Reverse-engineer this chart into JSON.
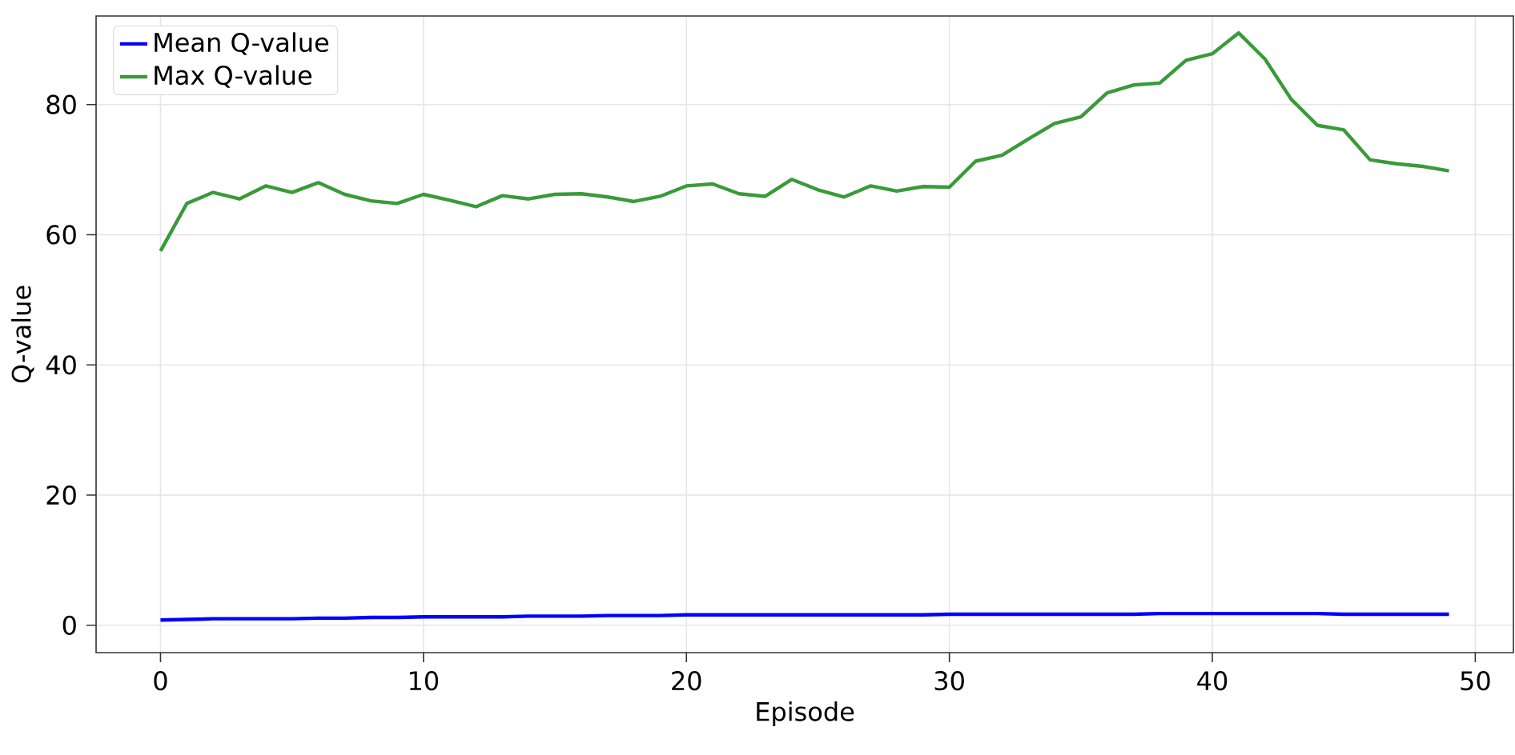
{
  "chart_data": {
    "type": "line",
    "xlabel": "Episode",
    "ylabel": "Q-value",
    "x": [
      0,
      1,
      2,
      3,
      4,
      5,
      6,
      7,
      8,
      9,
      10,
      11,
      12,
      13,
      14,
      15,
      16,
      17,
      18,
      19,
      20,
      21,
      22,
      23,
      24,
      25,
      26,
      27,
      28,
      29,
      30,
      31,
      32,
      33,
      34,
      35,
      36,
      37,
      38,
      39,
      40,
      41,
      42,
      43,
      44,
      45,
      46,
      47,
      48,
      49
    ],
    "series": [
      {
        "name": "Mean Q-value",
        "color": "#0000ff",
        "values": [
          0.8,
          0.9,
          1.0,
          1.0,
          1.0,
          1.0,
          1.1,
          1.1,
          1.2,
          1.2,
          1.3,
          1.3,
          1.3,
          1.3,
          1.4,
          1.4,
          1.4,
          1.5,
          1.5,
          1.5,
          1.6,
          1.6,
          1.6,
          1.6,
          1.6,
          1.6,
          1.6,
          1.6,
          1.6,
          1.6,
          1.7,
          1.7,
          1.7,
          1.7,
          1.7,
          1.7,
          1.7,
          1.7,
          1.8,
          1.8,
          1.8,
          1.8,
          1.8,
          1.8,
          1.8,
          1.7,
          1.7,
          1.7,
          1.7,
          1.7
        ]
      },
      {
        "name": "Max Q-value",
        "color": "#3a9a3a",
        "values": [
          57.5,
          64.8,
          66.5,
          65.5,
          67.5,
          66.5,
          68,
          66.2,
          65.2,
          64.8,
          66.2,
          65.3,
          64.3,
          66,
          65.5,
          66.2,
          66.3,
          65.8,
          65.1,
          65.9,
          67.5,
          67.8,
          66.3,
          65.9,
          68.5,
          66.9,
          65.8,
          67.5,
          66.7,
          67.4,
          67.3,
          71.3,
          72.2,
          74.7,
          77.1,
          78.1,
          81.8,
          83,
          83.3,
          86.8,
          87.8,
          91,
          87,
          80.8,
          76.8,
          76.1,
          71.5,
          70.9,
          70.5,
          69.8
        ]
      }
    ],
    "xlim": [
      -2.45,
      51.45
    ],
    "ylim": [
      -4.2,
      93.6
    ],
    "xticks": [
      0,
      10,
      20,
      30,
      40,
      50
    ],
    "yticks": [
      0,
      20,
      40,
      60,
      80
    ],
    "grid": true,
    "legend": "top left",
    "line_style": "solid",
    "marker": "none"
  }
}
